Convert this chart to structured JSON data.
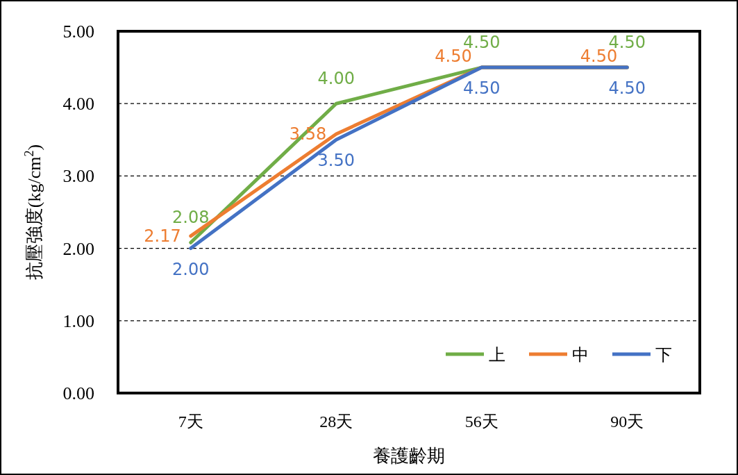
{
  "chart_data": {
    "type": "line",
    "xlabel": "養護齡期",
    "ylabel": "抗壓強度(kg/cm$^{2}$)",
    "categories": [
      "7天",
      "28天",
      "56天",
      "90天"
    ],
    "series": [
      {
        "name": "上",
        "color": "#70ad47",
        "values": [
          2.08,
          4.0,
          4.5,
          4.5
        ],
        "value_labels": [
          "2.08",
          "4.00",
          "4.50",
          "4.50"
        ]
      },
      {
        "name": "中",
        "color": "#ed7d31",
        "values": [
          2.17,
          3.58,
          4.5,
          4.5
        ],
        "value_labels": [
          "2.17",
          "3.58",
          "4.50",
          "4.50"
        ]
      },
      {
        "name": "下",
        "color": "#4472c4",
        "values": [
          2.0,
          3.5,
          4.5,
          4.5
        ],
        "value_labels": [
          "2.00",
          "3.50",
          "4.50",
          "4.50"
        ]
      }
    ],
    "ylim": [
      0,
      5
    ],
    "yticks": [
      {
        "value": 0,
        "label": "0.00"
      },
      {
        "value": 1,
        "label": "1.00"
      },
      {
        "value": 2,
        "label": "2.00"
      },
      {
        "value": 3,
        "label": "3.00"
      },
      {
        "value": 4,
        "label": "4.00"
      },
      {
        "value": 5,
        "label": "5.00"
      }
    ],
    "grid": "y",
    "legend": "bottom right",
    "line_style": "solid",
    "marker": "none"
  }
}
